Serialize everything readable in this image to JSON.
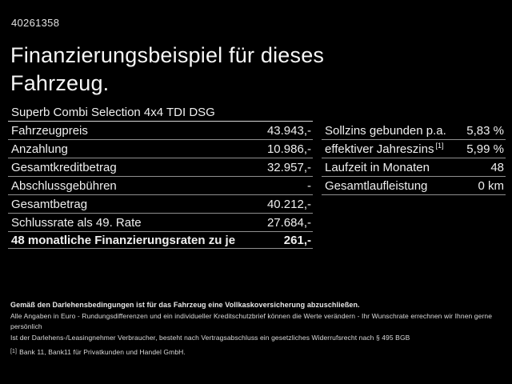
{
  "page": {
    "id_number": "40261358",
    "title_line1": "Finanzierungsbeispiel für dieses",
    "title_line2": "Fahrzeug.",
    "subtitle": "Superb Combi Selection 4x4 TDI DSG"
  },
  "left_table": {
    "rows": [
      {
        "label": "Fahrzeugpreis",
        "value": "43.943,-"
      },
      {
        "label": "Anzahlung",
        "value": "10.986,-"
      },
      {
        "label": "Gesamtkreditbetrag",
        "value": "32.957,-"
      },
      {
        "label": "Abschlussgebühren",
        "value": "-"
      },
      {
        "label": "Gesamtbetrag",
        "value": "40.212,-"
      },
      {
        "label": "Schlussrate als 49. Rate",
        "value": "27.684,-"
      },
      {
        "label": "48 monatliche Finanzierungsraten zu je",
        "value": "261,-"
      }
    ]
  },
  "right_table": {
    "rows": [
      {
        "label": "Sollzins gebunden p.a.",
        "value": "5,83 %"
      },
      {
        "label": "effektiver Jahreszins",
        "sup": "[1]",
        "value": "5,99 %"
      },
      {
        "label": "Laufzeit in Monaten",
        "value": "48"
      },
      {
        "label": "Gesamtlaufleistung",
        "value": "0 km"
      }
    ]
  },
  "footer": {
    "line_bold": "Gemäß den Darlehensbedingungen ist für das Fahrzeug eine Vollkaskoversicherung abzuschließen.",
    "line2": "Alle Angaben in Euro - Rundungsdifferenzen und ein individueller Kreditschutzbrief können die Werte verändern - Ihr Wunschrate errechnen wir Ihnen gerne persönlich",
    "line3": "Ist der Darlehens-/Leasingnehmer Verbraucher, besteht nach Vertragsabschluss ein gesetzliches Widerrufsrecht nach § 495 BGB",
    "footnote_marker": "[1]",
    "footnote_text": "Bank 11, Bank11 für Privatkunden und Handel GmbH."
  },
  "colors": {
    "background": "#000000",
    "text": "#efefef",
    "row_divider": "#8f8f8f",
    "subtitle_divider": "#d6d6d6"
  }
}
